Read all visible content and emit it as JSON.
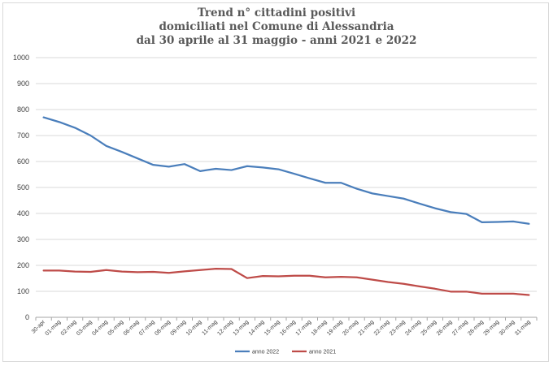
{
  "chart_data": {
    "type": "line",
    "title_lines": [
      "Trend n° cittadini positivi",
      "domiciliati nel Comune di Alessandria",
      "dal 30 aprile al 31 maggio - anni 2021 e 2022"
    ],
    "categories": [
      "30-apr",
      "01-mag",
      "02-mag",
      "03-mag",
      "04-mag",
      "05-mag",
      "06-mag",
      "07-mag",
      "08-mag",
      "09-mag",
      "10-mag",
      "11-mag",
      "12-mag",
      "13-mag",
      "14-mag",
      "15-mag",
      "16-mag",
      "17-mag",
      "18-mag",
      "19-mag",
      "20-mag",
      "21-mag",
      "22-mag",
      "23-mag",
      "24-mag",
      "25-mag",
      "26-mag",
      "27-mag",
      "28-mag",
      "29-mag",
      "30-mag",
      "31-mag"
    ],
    "ylim": [
      0,
      1000
    ],
    "yticks": [
      0,
      100,
      200,
      300,
      400,
      500,
      600,
      700,
      800,
      900,
      1000
    ],
    "grid": true,
    "legend_position": "bottom",
    "series": [
      {
        "name": "anno 2022",
        "color": "#4a7ebb",
        "values": [
          770,
          752,
          730,
          700,
          660,
          637,
          612,
          587,
          580,
          590,
          563,
          572,
          567,
          582,
          577,
          570,
          553,
          535,
          518,
          518,
          495,
          477,
          467,
          457,
          438,
          420,
          405,
          398,
          366,
          367,
          369,
          360
        ]
      },
      {
        "name": "anno 2021",
        "color": "#be4b48",
        "values": [
          180,
          180,
          176,
          175,
          182,
          176,
          174,
          175,
          171,
          177,
          182,
          187,
          186,
          151,
          159,
          158,
          160,
          160,
          154,
          156,
          154,
          145,
          136,
          129,
          119,
          110,
          99,
          99,
          91,
          91,
          91,
          86
        ]
      }
    ]
  }
}
